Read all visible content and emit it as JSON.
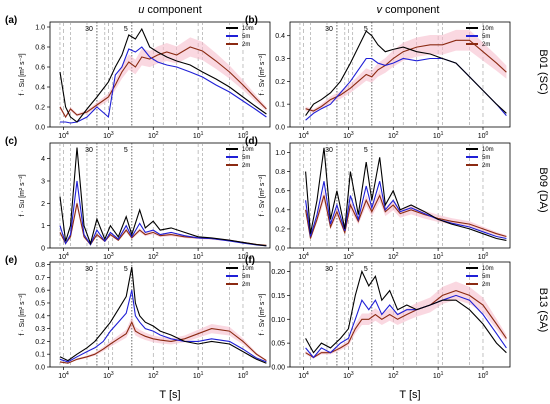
{
  "headers": {
    "u_italic": "u",
    "u_rest": " component",
    "v_italic": "v",
    "v_rest": " component"
  },
  "x_axis_label": "T [s]",
  "y_axis_label": "f · S",
  "legend": [
    "10m",
    "5m",
    "2m"
  ],
  "colors": {
    "10m": "#000000",
    "5m": "#1f1fd6",
    "2m": "#8b2a12",
    "ci": "#f5b8c8",
    "grid": "#9a9a9a"
  },
  "site_labels": [
    "B01 (SC)",
    "B09 (DA)",
    "B13 (SA)"
  ],
  "chart_data": [
    {
      "panel": "(a)",
      "type": "line",
      "component": "u",
      "site": "B01 (SC)",
      "xlabel": "",
      "ylabel": "f · Su [m² s⁻²]",
      "x_scale": "log-reversed",
      "x_ticks": [
        "10^4",
        "10^3",
        "10^2",
        "10^1",
        "10^0"
      ],
      "y_ticks": [
        "0.0",
        "0.2",
        "0.4",
        "0.6",
        "0.8",
        "1.0"
      ],
      "ylim": [
        0,
        1.05
      ],
      "markers": [
        "30",
        "5"
      ],
      "series": [
        {
          "name": "10m",
          "T": [
            12000,
            9000,
            7000,
            5000,
            3000,
            1800,
            1000,
            700,
            500,
            350,
            250,
            180,
            120,
            80,
            50,
            30,
            15,
            8,
            4,
            2,
            1,
            0.5,
            0.3
          ],
          "values": [
            0.55,
            0.2,
            0.1,
            0.05,
            0.18,
            0.3,
            0.45,
            0.6,
            0.72,
            0.92,
            0.88,
            0.98,
            0.8,
            0.75,
            0.7,
            0.66,
            0.62,
            0.55,
            0.48,
            0.4,
            0.3,
            0.2,
            0.13
          ]
        },
        {
          "name": "5m",
          "T": [
            12000,
            9000,
            7000,
            5000,
            3000,
            1800,
            1000,
            700,
            500,
            350,
            250,
            180,
            120,
            80,
            50,
            30,
            15,
            8,
            4,
            2,
            1,
            0.5,
            0.3
          ],
          "values": [
            0.05,
            0.05,
            0.04,
            0.05,
            0.1,
            0.2,
            0.1,
            0.52,
            0.6,
            0.78,
            0.75,
            0.8,
            0.7,
            0.65,
            0.62,
            0.6,
            0.55,
            0.5,
            0.42,
            0.35,
            0.26,
            0.17,
            0.1
          ]
        },
        {
          "name": "2m",
          "T": [
            12000,
            9000,
            7000,
            5000,
            3000,
            1800,
            1000,
            700,
            500,
            350,
            250,
            180,
            120,
            80,
            50,
            30,
            15,
            8,
            4,
            2,
            1,
            0.5,
            0.3
          ],
          "values": [
            0.2,
            0.1,
            0.18,
            0.12,
            0.15,
            0.22,
            0.3,
            0.42,
            0.55,
            0.65,
            0.6,
            0.7,
            0.68,
            0.72,
            0.75,
            0.72,
            0.8,
            0.76,
            0.66,
            0.55,
            0.42,
            0.28,
            0.18
          ]
        }
      ]
    },
    {
      "panel": "(b)",
      "type": "line",
      "component": "v",
      "site": "B01 (SC)",
      "xlabel": "",
      "ylabel": "f · Sv [m² s⁻²]",
      "x_scale": "log-reversed",
      "x_ticks": [
        "10^4",
        "10^3",
        "10^2",
        "10^1",
        "10^0"
      ],
      "y_ticks": [
        "0.0",
        "0.1",
        "0.2",
        "0.3",
        "0.4"
      ],
      "ylim": [
        0,
        0.46
      ],
      "markers": [
        "30",
        "5"
      ],
      "series": [
        {
          "name": "10m",
          "T": [
            9000,
            6000,
            4000,
            2500,
            1500,
            900,
            600,
            400,
            300,
            220,
            150,
            100,
            60,
            30,
            15,
            8,
            4,
            2,
            1,
            0.5,
            0.3
          ],
          "values": [
            0.05,
            0.1,
            0.12,
            0.15,
            0.2,
            0.28,
            0.35,
            0.42,
            0.4,
            0.36,
            0.33,
            0.34,
            0.35,
            0.33,
            0.32,
            0.3,
            0.28,
            0.22,
            0.16,
            0.1,
            0.06
          ]
        },
        {
          "name": "5m",
          "T": [
            9000,
            6000,
            4000,
            2500,
            1500,
            900,
            600,
            400,
            300,
            220,
            150,
            100,
            60,
            30,
            15,
            8,
            4,
            2,
            1,
            0.5,
            0.3
          ],
          "values": [
            0.03,
            0.06,
            0.08,
            0.1,
            0.15,
            0.2,
            0.25,
            0.3,
            0.3,
            0.28,
            0.27,
            0.28,
            0.3,
            0.29,
            0.3,
            0.3,
            0.28,
            0.22,
            0.16,
            0.1,
            0.05
          ]
        },
        {
          "name": "2m",
          "T": [
            9000,
            6000,
            4000,
            2500,
            1500,
            900,
            600,
            400,
            300,
            220,
            150,
            100,
            60,
            30,
            15,
            8,
            4,
            2,
            1,
            0.5,
            0.3
          ],
          "values": [
            0.08,
            0.07,
            0.09,
            0.12,
            0.14,
            0.17,
            0.2,
            0.23,
            0.22,
            0.25,
            0.27,
            0.3,
            0.33,
            0.35,
            0.36,
            0.36,
            0.38,
            0.38,
            0.33,
            0.28,
            0.24
          ]
        }
      ]
    },
    {
      "panel": "(c)",
      "type": "line",
      "component": "u",
      "site": "B09 (DA)",
      "xlabel": "",
      "ylabel": "f · Su [m² s⁻²]",
      "x_scale": "log-reversed",
      "x_ticks": [
        "10^4",
        "10^3",
        "10^2",
        "10^1",
        "10^0"
      ],
      "y_ticks": [
        "0",
        "1",
        "2",
        "3",
        "4"
      ],
      "ylim": [
        0,
        4.7
      ],
      "markers": [
        "30",
        "5"
      ],
      "series": [
        {
          "name": "10m",
          "T": [
            12000,
            9000,
            7000,
            5000,
            3500,
            2500,
            1800,
            1200,
            900,
            600,
            400,
            300,
            200,
            150,
            100,
            70,
            40,
            20,
            10,
            5,
            2,
            1,
            0.5,
            0.3
          ],
          "values": [
            2.3,
            0.3,
            1.0,
            4.5,
            1.0,
            0.2,
            1.3,
            0.4,
            1.0,
            0.5,
            1.4,
            0.6,
            1.7,
            0.9,
            1.2,
            0.8,
            0.9,
            0.7,
            0.5,
            0.45,
            0.35,
            0.25,
            0.15,
            0.1
          ]
        },
        {
          "name": "5m",
          "T": [
            12000,
            9000,
            7000,
            5000,
            3500,
            2500,
            1800,
            1200,
            900,
            600,
            400,
            300,
            200,
            150,
            100,
            70,
            40,
            20,
            10,
            5,
            2,
            1,
            0.5,
            0.3
          ],
          "values": [
            1.0,
            0.2,
            0.6,
            3.0,
            0.6,
            0.15,
            0.8,
            0.3,
            0.7,
            0.4,
            1.0,
            0.5,
            1.1,
            0.7,
            0.8,
            0.6,
            0.7,
            0.55,
            0.45,
            0.42,
            0.32,
            0.22,
            0.14,
            0.1
          ]
        },
        {
          "name": "2m",
          "T": [
            12000,
            9000,
            7000,
            5000,
            3500,
            2500,
            1800,
            1200,
            900,
            600,
            400,
            300,
            200,
            150,
            100,
            70,
            40,
            20,
            10,
            5,
            2,
            1,
            0.5,
            0.3
          ],
          "values": [
            0.7,
            0.2,
            0.5,
            2.0,
            0.5,
            0.15,
            0.6,
            0.3,
            0.6,
            0.35,
            0.8,
            0.45,
            0.8,
            0.6,
            0.7,
            0.55,
            0.6,
            0.5,
            0.45,
            0.42,
            0.34,
            0.25,
            0.16,
            0.12
          ]
        }
      ]
    },
    {
      "panel": "(d)",
      "type": "line",
      "component": "v",
      "site": "B09 (DA)",
      "xlabel": "",
      "ylabel": "f · Sv [m² s⁻²]",
      "x_scale": "log-reversed",
      "x_ticks": [
        "10^4",
        "10^3",
        "10^2",
        "10^1",
        "10^0"
      ],
      "y_ticks": [
        "0.0",
        "0.2",
        "0.4",
        "0.6",
        "0.8",
        "1.0"
      ],
      "ylim": [
        0,
        1.1
      ],
      "markers": [
        "30",
        "5"
      ],
      "series": [
        {
          "name": "10m",
          "T": [
            9000,
            7000,
            5000,
            3500,
            2500,
            1800,
            1200,
            900,
            600,
            400,
            300,
            200,
            150,
            100,
            70,
            40,
            20,
            10,
            5,
            2,
            1,
            0.5,
            0.3
          ],
          "values": [
            0.8,
            0.15,
            0.5,
            1.05,
            0.3,
            0.6,
            0.2,
            0.8,
            0.35,
            0.9,
            0.5,
            0.95,
            0.45,
            0.6,
            0.4,
            0.45,
            0.38,
            0.3,
            0.25,
            0.2,
            0.15,
            0.1,
            0.08
          ]
        },
        {
          "name": "5m",
          "T": [
            9000,
            7000,
            5000,
            3500,
            2500,
            1800,
            1200,
            900,
            600,
            400,
            300,
            200,
            150,
            100,
            70,
            40,
            20,
            10,
            5,
            2,
            1,
            0.5,
            0.3
          ],
          "values": [
            0.5,
            0.12,
            0.35,
            0.7,
            0.25,
            0.45,
            0.18,
            0.55,
            0.3,
            0.65,
            0.42,
            0.7,
            0.4,
            0.5,
            0.38,
            0.42,
            0.36,
            0.3,
            0.26,
            0.22,
            0.17,
            0.12,
            0.1
          ]
        },
        {
          "name": "2m",
          "T": [
            9000,
            7000,
            5000,
            3500,
            2500,
            1800,
            1200,
            900,
            600,
            400,
            300,
            200,
            150,
            100,
            70,
            40,
            20,
            10,
            5,
            2,
            1,
            0.5,
            0.3
          ],
          "values": [
            0.4,
            0.1,
            0.3,
            0.55,
            0.22,
            0.38,
            0.16,
            0.45,
            0.28,
            0.5,
            0.38,
            0.55,
            0.38,
            0.45,
            0.36,
            0.4,
            0.35,
            0.31,
            0.28,
            0.25,
            0.2,
            0.15,
            0.12
          ]
        }
      ]
    },
    {
      "panel": "(e)",
      "type": "line",
      "component": "u",
      "site": "B13 (SA)",
      "xlabel": "T [s]",
      "ylabel": "f · Su [m² s⁻²]",
      "x_scale": "log-reversed",
      "x_ticks": [
        "10^4",
        "10^3",
        "10^2",
        "10^1",
        "10^0"
      ],
      "y_ticks": [
        "0.0",
        "0.1",
        "0.2",
        "0.3",
        "0.4",
        "0.5",
        "0.6",
        "0.7",
        "0.8"
      ],
      "ylim": [
        0,
        0.82
      ],
      "markers": [
        "30",
        "5"
      ],
      "series": [
        {
          "name": "10m",
          "T": [
            12000,
            8000,
            5000,
            3000,
            2000,
            1300,
            900,
            600,
            400,
            300,
            250,
            200,
            150,
            100,
            70,
            40,
            20,
            10,
            5,
            2,
            1,
            0.5,
            0.3
          ],
          "values": [
            0.08,
            0.05,
            0.1,
            0.15,
            0.2,
            0.28,
            0.35,
            0.45,
            0.55,
            0.78,
            0.5,
            0.4,
            0.35,
            0.32,
            0.28,
            0.25,
            0.2,
            0.18,
            0.2,
            0.18,
            0.12,
            0.06,
            0.03
          ]
        },
        {
          "name": "5m",
          "T": [
            12000,
            8000,
            5000,
            3000,
            2000,
            1300,
            900,
            600,
            400,
            300,
            250,
            200,
            150,
            100,
            70,
            40,
            20,
            10,
            5,
            2,
            1,
            0.5,
            0.3
          ],
          "values": [
            0.06,
            0.04,
            0.08,
            0.12,
            0.15,
            0.2,
            0.28,
            0.35,
            0.42,
            0.6,
            0.4,
            0.35,
            0.3,
            0.28,
            0.25,
            0.22,
            0.2,
            0.2,
            0.22,
            0.2,
            0.14,
            0.07,
            0.04
          ]
        },
        {
          "name": "2m",
          "T": [
            12000,
            8000,
            5000,
            3000,
            2000,
            1300,
            900,
            600,
            400,
            300,
            250,
            200,
            150,
            100,
            70,
            40,
            20,
            10,
            5,
            2,
            1,
            0.5,
            0.3
          ],
          "values": [
            0.04,
            0.03,
            0.06,
            0.08,
            0.1,
            0.14,
            0.18,
            0.22,
            0.26,
            0.35,
            0.28,
            0.26,
            0.24,
            0.22,
            0.21,
            0.2,
            0.22,
            0.26,
            0.3,
            0.28,
            0.2,
            0.1,
            0.05
          ]
        }
      ]
    },
    {
      "panel": "(f)",
      "type": "line",
      "component": "v",
      "site": "B13 (SA)",
      "xlabel": "T [s]",
      "ylabel": "f · Sv [m² s⁻²]",
      "x_scale": "log-reversed",
      "x_ticks": [
        "10^4",
        "10^3",
        "10^2",
        "10^1",
        "10^0"
      ],
      "y_ticks": [
        "0.00",
        "0.05",
        "0.10",
        "0.15",
        "0.20"
      ],
      "ylim": [
        0,
        0.22
      ],
      "markers": [
        "30",
        "5"
      ],
      "series": [
        {
          "name": "10m",
          "T": [
            9000,
            6000,
            4000,
            2500,
            1500,
            1000,
            700,
            500,
            350,
            250,
            180,
            120,
            80,
            50,
            30,
            15,
            8,
            4,
            2,
            1,
            0.5,
            0.3
          ],
          "values": [
            0.06,
            0.03,
            0.05,
            0.04,
            0.06,
            0.08,
            0.15,
            0.2,
            0.17,
            0.19,
            0.14,
            0.16,
            0.12,
            0.13,
            0.12,
            0.13,
            0.14,
            0.14,
            0.12,
            0.09,
            0.05,
            0.03
          ]
        },
        {
          "name": "5m",
          "T": [
            9000,
            6000,
            4000,
            2500,
            1500,
            1000,
            700,
            500,
            350,
            250,
            180,
            120,
            80,
            50,
            30,
            15,
            8,
            4,
            2,
            1,
            0.5,
            0.3
          ],
          "values": [
            0.04,
            0.02,
            0.04,
            0.03,
            0.05,
            0.06,
            0.1,
            0.14,
            0.12,
            0.14,
            0.11,
            0.13,
            0.11,
            0.12,
            0.12,
            0.13,
            0.14,
            0.15,
            0.14,
            0.11,
            0.07,
            0.04
          ]
        },
        {
          "name": "2m",
          "T": [
            9000,
            6000,
            4000,
            2500,
            1500,
            1000,
            700,
            500,
            350,
            250,
            180,
            120,
            80,
            50,
            30,
            15,
            8,
            4,
            2,
            1,
            0.5,
            0.3
          ],
          "values": [
            0.03,
            0.02,
            0.03,
            0.03,
            0.04,
            0.05,
            0.08,
            0.1,
            0.1,
            0.11,
            0.1,
            0.11,
            0.1,
            0.11,
            0.12,
            0.13,
            0.15,
            0.16,
            0.15,
            0.13,
            0.09,
            0.06
          ]
        }
      ]
    }
  ]
}
